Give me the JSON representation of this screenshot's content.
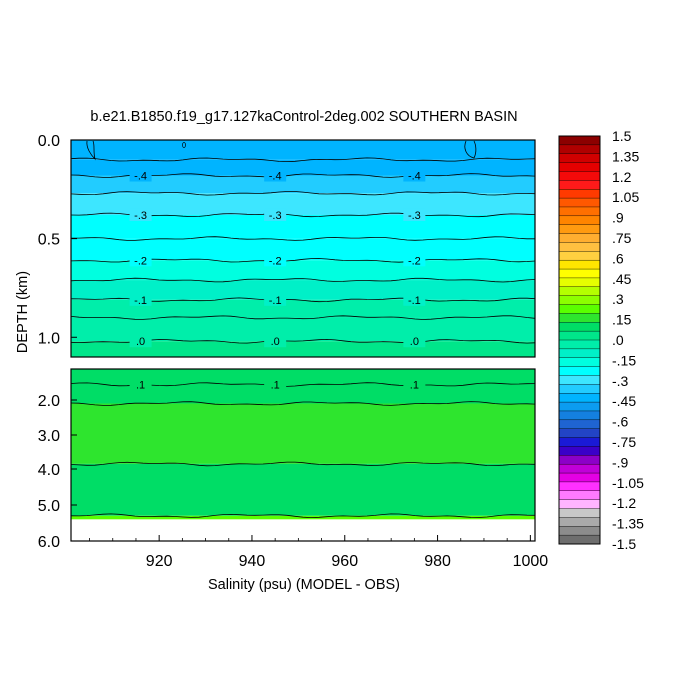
{
  "chart_data": {
    "type": "heatmap",
    "title": "b.e21.B1850.f19_g17.127kaControl-2deg.002 SOUTHERN BASIN",
    "xlabel": "Salinity (psu) (MODEL - OBS)",
    "ylabel": "DEPTH (km)",
    "x_ticks": [
      "920",
      "940",
      "960",
      "980",
      "1000"
    ],
    "x_tick_values": [
      920,
      940,
      960,
      980,
      1000
    ],
    "xlim": [
      901,
      1001
    ],
    "upper_panel": {
      "ylim": [
        0.0,
        1.1
      ],
      "y_ticks": [
        "0.0",
        "0.5",
        "1.0"
      ],
      "y_tick_values": [
        0.0,
        0.5,
        1.0
      ],
      "bands": [
        {
          "from": 0.0,
          "to": 0.1,
          "value": -0.45
        },
        {
          "from": 0.1,
          "to": 0.18,
          "value": -0.4
        },
        {
          "from": 0.18,
          "to": 0.27,
          "value": -0.35
        },
        {
          "from": 0.27,
          "to": 0.38,
          "value": -0.3
        },
        {
          "from": 0.38,
          "to": 0.5,
          "value": -0.25
        },
        {
          "from": 0.5,
          "to": 0.61,
          "value": -0.2
        },
        {
          "from": 0.61,
          "to": 0.71,
          "value": -0.15
        },
        {
          "from": 0.71,
          "to": 0.81,
          "value": -0.1
        },
        {
          "from": 0.81,
          "to": 0.9,
          "value": -0.05
        },
        {
          "from": 0.9,
          "to": 1.02,
          "value": 0.0
        },
        {
          "from": 1.02,
          "to": 1.1,
          "value": 0.05
        }
      ],
      "contours": [
        {
          "depth": 0.1,
          "label": null
        },
        {
          "depth": 0.18,
          "label": "-.4"
        },
        {
          "depth": 0.27,
          "label": null
        },
        {
          "depth": 0.38,
          "label": "-.3"
        },
        {
          "depth": 0.5,
          "label": null
        },
        {
          "depth": 0.61,
          "label": "-.2"
        },
        {
          "depth": 0.71,
          "label": null
        },
        {
          "depth": 0.81,
          "label": "-.1"
        },
        {
          "depth": 0.9,
          "label": null
        },
        {
          "depth": 1.02,
          "label": ".0"
        }
      ],
      "contour_label_x": [
        916,
        945,
        975
      ]
    },
    "lower_panel": {
      "ylim": [
        1.1,
        6.0
      ],
      "y_ticks": [
        "2.0",
        "3.0",
        "4.0",
        "5.0",
        "6.0"
      ],
      "y_tick_values": [
        2.0,
        3.0,
        4.0,
        5.0,
        6.0
      ],
      "bands": [
        {
          "from": 1.1,
          "to": 2.1,
          "value": 0.1
        },
        {
          "from": 2.1,
          "to": 3.85,
          "value": 0.15
        },
        {
          "from": 3.85,
          "to": 5.3,
          "value": 0.1
        },
        {
          "from": 5.3,
          "to": 5.4,
          "value": 0.2
        }
      ],
      "contours": [
        {
          "depth": 1.55,
          "label": ".1"
        },
        {
          "depth": 2.1,
          "label": null
        },
        {
          "depth": 3.85,
          "label": null
        },
        {
          "depth": 5.3,
          "label": null
        }
      ],
      "contour_label_x": [
        916,
        945,
        975
      ],
      "missing_below": 5.4
    },
    "colorbar": {
      "min": -1.5,
      "max": 1.5,
      "labels": [
        "1.5",
        "1.35",
        "1.2",
        "1.05",
        ".9",
        ".75",
        ".6",
        ".45",
        ".3",
        ".15",
        ".0",
        "-.15",
        "-.3",
        "-.45",
        "-.6",
        "-.75",
        "-.9",
        "-1.05",
        "-1.2",
        "-1.35",
        "-1.5"
      ],
      "colors_top_to_bottom": [
        "#8c0000",
        "#b00000",
        "#d00000",
        "#e40000",
        "#f40a0a",
        "#ff1a1a",
        "#ff3a00",
        "#ff5800",
        "#ff6f00",
        "#ff8400",
        "#ff9a10",
        "#ffae30",
        "#ffc040",
        "#ffd040",
        "#ffe600",
        "#ffff00",
        "#e6ff00",
        "#b4ff00",
        "#8cff00",
        "#5aff00",
        "#2ee52e",
        "#00dd66",
        "#00e68a",
        "#00eeaa",
        "#00f0c8",
        "#00ffe0",
        "#00ffff",
        "#3de6ff",
        "#22ccff",
        "#00b4ff",
        "#0c9cf0",
        "#1480e0",
        "#1f64d2",
        "#2244c6",
        "#1a1ad6",
        "#3a00c8",
        "#8c00c8",
        "#c000d8",
        "#e400e4",
        "#ff30ff",
        "#ff7aff",
        "#ffb4ff",
        "#c8c8c8",
        "#aaaaaa",
        "#8c8c8c",
        "#6e6e6e"
      ]
    }
  }
}
